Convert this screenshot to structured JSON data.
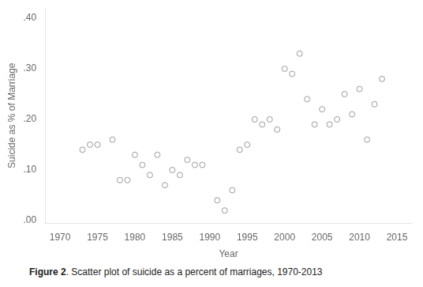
{
  "chart_data": {
    "type": "scatter",
    "x": [
      1973,
      1974,
      1975,
      1977,
      1978,
      1979,
      1980,
      1981,
      1982,
      1983,
      1984,
      1985,
      1986,
      1987,
      1988,
      1989,
      1991,
      1992,
      1993,
      1994,
      1995,
      1996,
      1997,
      1998,
      1999,
      2000,
      2001,
      2002,
      2003,
      2004,
      2005,
      2006,
      2007,
      2008,
      2009,
      2010,
      2011,
      2012,
      2013
    ],
    "values": [
      0.14,
      0.15,
      0.15,
      0.16,
      0.08,
      0.08,
      0.13,
      0.11,
      0.09,
      0.13,
      0.07,
      0.1,
      0.09,
      0.12,
      0.11,
      0.11,
      0.04,
      0.02,
      0.06,
      0.14,
      0.15,
      0.2,
      0.19,
      0.2,
      0.18,
      0.3,
      0.29,
      0.33,
      0.24,
      0.19,
      0.22,
      0.19,
      0.2,
      0.25,
      0.21,
      0.26,
      0.16,
      0.23,
      0.28
    ],
    "xlabel": "Year",
    "ylabel": "Suicide as % of Marriage",
    "xlim": [
      1968,
      2017
    ],
    "ylim": [
      -0.005,
      0.42
    ],
    "xticks": [
      1970,
      1975,
      1980,
      1985,
      1990,
      1995,
      2000,
      2005,
      2010,
      2015
    ],
    "yticks": [
      {
        "value": 0.0,
        "label": ".00"
      },
      {
        "value": 0.1,
        "label": ".10"
      },
      {
        "value": 0.2,
        "label": ".20"
      },
      {
        "value": 0.3,
        "label": ".30"
      },
      {
        "value": 0.4,
        "label": ".40"
      }
    ],
    "color": "#999999",
    "marker": "hollow",
    "grid": false,
    "caption": {
      "bold": "Figure 2",
      "text": ". Scatter plot of suicide as a percent of marriages, 1970-2013"
    }
  }
}
